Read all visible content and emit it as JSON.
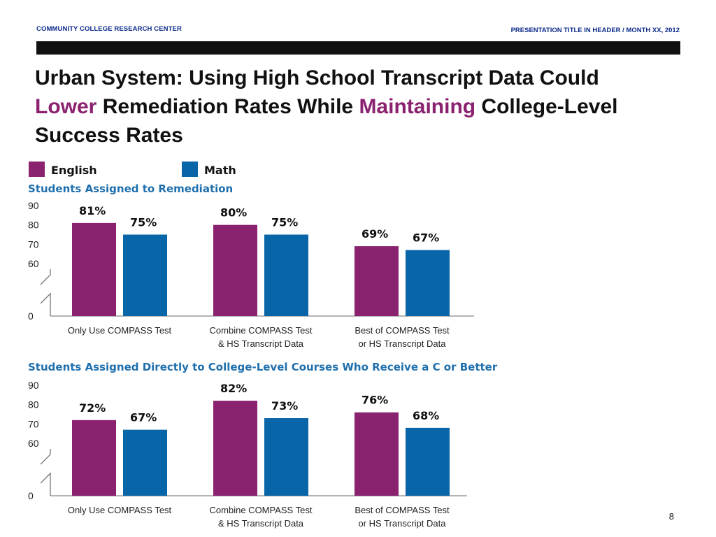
{
  "header": {
    "org": "COMMUNITY COLLEGE RESEARCH CENTER",
    "presentation": "PRESENTATION TITLE IN HEADER / MONTH XX, 2012"
  },
  "title": {
    "part1": "Urban System: Using High School Transcript Data Could ",
    "highlight1": "Lower",
    "part2": " Remediation Rates While ",
    "highlight2": "Maintaining",
    "part3": " College-Level Success Rates"
  },
  "page_number": "8",
  "colors": {
    "english": "#8a226f",
    "math": "#0865a8",
    "title_blue": "#1f6fad"
  },
  "legend": [
    {
      "name": "English",
      "color": "#8a226f"
    },
    {
      "name": "Math",
      "color": "#0865a8"
    }
  ],
  "chart_data": [
    {
      "type": "bar",
      "title": "Students Assigned to Remediation",
      "categories": [
        "Only Use COMPASS Test",
        "Combine COMPASS Test & HS Transcript Data",
        "Best of COMPASS Test or HS Transcript Data"
      ],
      "category_lines": [
        [
          "Only Use COMPASS Test"
        ],
        [
          "Combine COMPASS Test",
          "& HS Transcript Data"
        ],
        [
          "Best of COMPASS Test",
          "or HS Transcript Data"
        ]
      ],
      "series": [
        {
          "name": "English",
          "values": [
            81,
            80,
            69
          ],
          "labels": [
            "81%",
            "80%",
            "69%"
          ]
        },
        {
          "name": "Math",
          "values": [
            75,
            75,
            67
          ],
          "labels": [
            "75%",
            "75%",
            "67%"
          ]
        }
      ],
      "yticks": [
        0,
        60,
        70,
        80,
        90
      ],
      "ylim": [
        0,
        90
      ],
      "axis_break": "between 0 and 60",
      "xlabel": "",
      "ylabel": ""
    },
    {
      "type": "bar",
      "title": "Students Assigned Directly to College-Level Courses Who Receive a C or Better",
      "categories": [
        "Only Use COMPASS Test",
        "Combine COMPASS Test & HS Transcript Data",
        "Best of COMPASS Test or HS Transcript Data"
      ],
      "category_lines": [
        [
          "Only Use COMPASS Test"
        ],
        [
          "Combine COMPASS Test",
          "& HS Transcript Data"
        ],
        [
          "Best of COMPASS Test",
          "or HS Transcript Data"
        ]
      ],
      "series": [
        {
          "name": "English",
          "values": [
            72,
            82,
            76
          ],
          "labels": [
            "72%",
            "82%",
            "76%"
          ]
        },
        {
          "name": "Math",
          "values": [
            67,
            73,
            68
          ],
          "labels": [
            "67%",
            "73%",
            "68%"
          ]
        }
      ],
      "yticks": [
        0,
        60,
        70,
        80,
        90
      ],
      "ylim": [
        0,
        90
      ],
      "axis_break": "between 0 and 60",
      "xlabel": "",
      "ylabel": ""
    }
  ]
}
